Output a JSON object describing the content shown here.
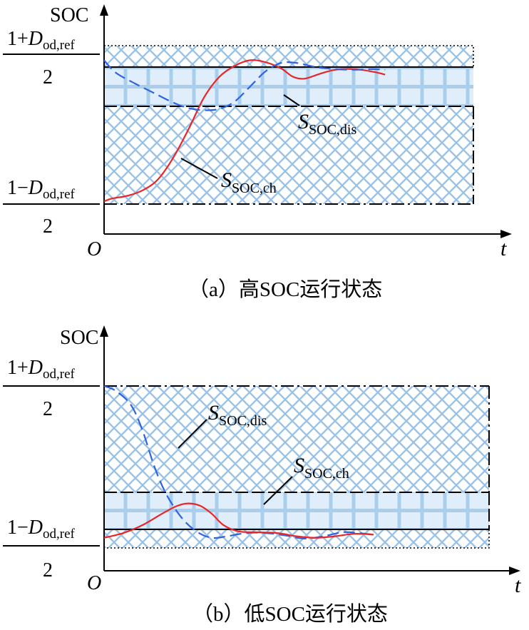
{
  "chart_data": [
    {
      "type": "line",
      "title": "",
      "caption": "（a）高SOC运行状态",
      "ylabel": "SOC",
      "xlabel": "t",
      "origin_label": "O",
      "upper_label": {
        "num_pre": "1+",
        "var": "D",
        "sub": "od,ref",
        "den": "2"
      },
      "lower_label": {
        "num_pre": "1−",
        "var": "D",
        "sub": "od,ref",
        "den": "2"
      },
      "series": [
        {
          "name": "S_SOC,ch",
          "label_main": "S",
          "label_sub": "SOC,ch",
          "color": "#e8262a",
          "dash": "solid",
          "values": [
            [
              0,
              0.02
            ],
            [
              0.02,
              0.04
            ],
            [
              0.06,
              0.06
            ],
            [
              0.1,
              0.1
            ],
            [
              0.14,
              0.18
            ],
            [
              0.18,
              0.34
            ],
            [
              0.22,
              0.55
            ],
            [
              0.26,
              0.78
            ],
            [
              0.3,
              0.93
            ],
            [
              0.34,
              1.01
            ],
            [
              0.38,
              1.05
            ],
            [
              0.42,
              1.035
            ],
            [
              0.46,
              0.99
            ],
            [
              0.49,
              0.93
            ],
            [
              0.52,
              0.915
            ],
            [
              0.56,
              0.95
            ],
            [
              0.6,
              0.98
            ],
            [
              0.65,
              0.985
            ],
            [
              0.7,
              0.965
            ],
            [
              0.73,
              0.945
            ]
          ]
        },
        {
          "name": "S_SOC,dis",
          "label_main": "S",
          "label_sub": "SOC,dis",
          "color": "#2f63e0",
          "dash": "dashed",
          "values": [
            [
              0,
              1.05
            ],
            [
              0.03,
              0.96
            ],
            [
              0.08,
              0.88
            ],
            [
              0.13,
              0.81
            ],
            [
              0.18,
              0.74
            ],
            [
              0.22,
              0.7
            ],
            [
              0.26,
              0.685
            ],
            [
              0.3,
              0.695
            ],
            [
              0.34,
              0.75
            ],
            [
              0.38,
              0.86
            ],
            [
              0.42,
              0.97
            ],
            [
              0.46,
              1.03
            ],
            [
              0.5,
              1.03
            ],
            [
              0.55,
              1.0
            ],
            [
              0.6,
              0.985
            ],
            [
              0.65,
              0.98
            ],
            [
              0.7,
              0.985
            ],
            [
              0.73,
              0.98
            ]
          ]
        }
      ]
    },
    {
      "type": "line",
      "title": "",
      "caption": "（b）低SOC运行状态",
      "ylabel": "SOC",
      "xlabel": "t",
      "origin_label": "O",
      "upper_label": {
        "num_pre": "1+",
        "var": "D",
        "sub": "od,ref",
        "den": "2"
      },
      "lower_label": {
        "num_pre": "1−",
        "var": "D",
        "sub": "od,ref",
        "den": "2"
      },
      "series": [
        {
          "name": "S_SOC,dis",
          "label_main": "S",
          "label_sub": "SOC,dis",
          "color": "#2f63e0",
          "dash": "dashed",
          "values": [
            [
              0,
              1.0
            ],
            [
              0.03,
              0.97
            ],
            [
              0.07,
              0.88
            ],
            [
              0.1,
              0.72
            ],
            [
              0.13,
              0.5
            ],
            [
              0.16,
              0.33
            ],
            [
              0.2,
              0.18
            ],
            [
              0.24,
              0.09
            ],
            [
              0.28,
              0.05
            ],
            [
              0.32,
              0.06
            ],
            [
              0.37,
              0.08
            ],
            [
              0.42,
              0.08
            ],
            [
              0.47,
              0.065
            ],
            [
              0.52,
              0.045
            ],
            [
              0.57,
              0.06
            ],
            [
              0.62,
              0.085
            ],
            [
              0.66,
              0.08
            ],
            [
              0.7,
              0.07
            ]
          ]
        },
        {
          "name": "S_SOC,ch",
          "label_main": "S",
          "label_sub": "SOC,ch",
          "color": "#e8262a",
          "dash": "solid",
          "values": [
            [
              0,
              0.05
            ],
            [
              0.05,
              0.08
            ],
            [
              0.1,
              0.13
            ],
            [
              0.15,
              0.2
            ],
            [
              0.19,
              0.25
            ],
            [
              0.22,
              0.265
            ],
            [
              0.25,
              0.25
            ],
            [
              0.28,
              0.2
            ],
            [
              0.31,
              0.13
            ],
            [
              0.35,
              0.09
            ],
            [
              0.4,
              0.085
            ],
            [
              0.45,
              0.08
            ],
            [
              0.5,
              0.06
            ],
            [
              0.55,
              0.05
            ],
            [
              0.6,
              0.06
            ],
            [
              0.65,
              0.075
            ],
            [
              0.7,
              0.07
            ]
          ]
        }
      ]
    }
  ]
}
